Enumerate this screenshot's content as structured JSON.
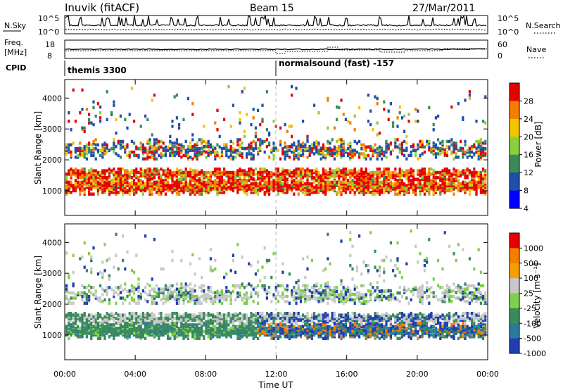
{
  "header": {
    "station": "Inuvik (fitACF)",
    "beam": "Beam 15",
    "date": "27/Mar/2011"
  },
  "panels": {
    "nsky_label": "N.Sky",
    "nsearch_label": "N.Search",
    "noise_ticks": [
      "10^5",
      "10^0"
    ],
    "freq_label_1": "Freq.",
    "freq_label_2": "[MHz]",
    "freq_ticks": [
      "18",
      "8"
    ],
    "nave_ticks": [
      "60",
      "0"
    ],
    "nave_label": "Nave",
    "cpid_label": "CPID",
    "cpid_1": "themis 3300",
    "cpid_2": "normalsound (fast) -157"
  },
  "chart_data": [
    {
      "type": "heatmap",
      "name": "power",
      "ylabel": "Slant Range [km]",
      "xlabel": "",
      "ylim": [
        200,
        4600
      ],
      "yticks": [
        "1000",
        "2000",
        "3000",
        "4000"
      ],
      "x_ticks": [
        "00:00",
        "04:00",
        "08:00",
        "12:00",
        "16:00",
        "20:00",
        "00:00"
      ],
      "colorbar_label": "Power [dB]",
      "colorbar_ticks": [
        "28",
        "24",
        "20",
        "16",
        "12",
        "8",
        "4"
      ],
      "colors": [
        "#0000ff",
        "#1f50a8",
        "#3a8a5c",
        "#8ccf3c",
        "#f5c400",
        "#f57e00",
        "#e60000"
      ]
    },
    {
      "type": "heatmap",
      "name": "velocity",
      "ylabel": "Slant Range [km]",
      "xlabel": "Time UT",
      "ylim": [
        200,
        4600
      ],
      "yticks": [
        "1000",
        "2000",
        "3000",
        "4000"
      ],
      "x_ticks": [
        "00:00",
        "04:00",
        "08:00",
        "12:00",
        "16:00",
        "20:00",
        "00:00"
      ],
      "colorbar_label": "Velocity [m s⁻¹]",
      "colorbar_ticks": [
        "1000",
        "500",
        "100",
        "25",
        "-25",
        "-100",
        "-500",
        "-1000"
      ],
      "colors": [
        "#1f3fb0",
        "#2a7a9c",
        "#3a8a5c",
        "#7fd04a",
        "#c8c8c8",
        "#f5a000",
        "#f57e00",
        "#e60000"
      ]
    }
  ]
}
